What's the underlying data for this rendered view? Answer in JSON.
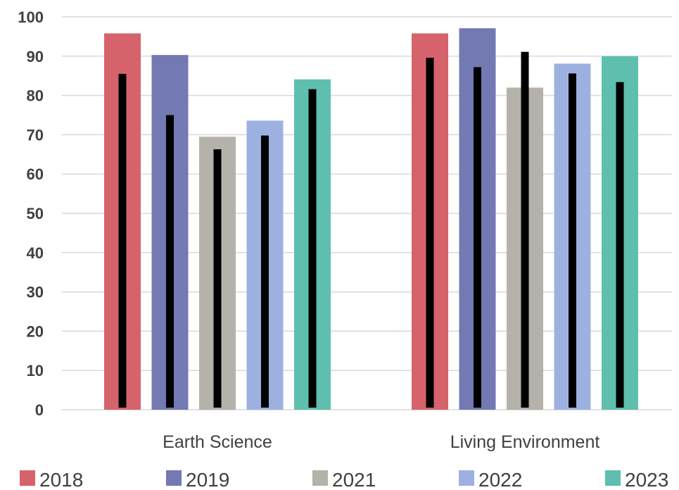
{
  "chart_data": {
    "type": "bar",
    "title": "",
    "xlabel": "",
    "ylabel": "",
    "categories": [
      "Earth Science",
      "Living Environment"
    ],
    "ylim": [
      0,
      100
    ],
    "yticks": [
      0,
      10,
      20,
      30,
      40,
      50,
      60,
      70,
      80,
      90,
      100
    ],
    "grid": true,
    "legend_position": "bottom",
    "series": [
      {
        "name": "2018",
        "color": "#d6636b",
        "values": [
          95.8,
          95.8
        ],
        "marker_values": [
          85.5,
          89.6
        ]
      },
      {
        "name": "2019",
        "color": "#7379b3",
        "values": [
          90.3,
          97.1
        ],
        "marker_values": [
          75.0,
          87.2
        ]
      },
      {
        "name": "2021",
        "color": "#b5b1ab",
        "values": [
          69.5,
          82.0
        ],
        "marker_values": [
          66.3,
          91.1
        ]
      },
      {
        "name": "2022",
        "color": "#9db1e1",
        "values": [
          73.6,
          88.1
        ],
        "marker_values": [
          69.8,
          85.6
        ]
      },
      {
        "name": "2023",
        "color": "#5fbfaf",
        "values": [
          84.1,
          90.0
        ],
        "marker_values": [
          81.6,
          83.4
        ]
      }
    ],
    "marker_series_color": "#000000"
  }
}
